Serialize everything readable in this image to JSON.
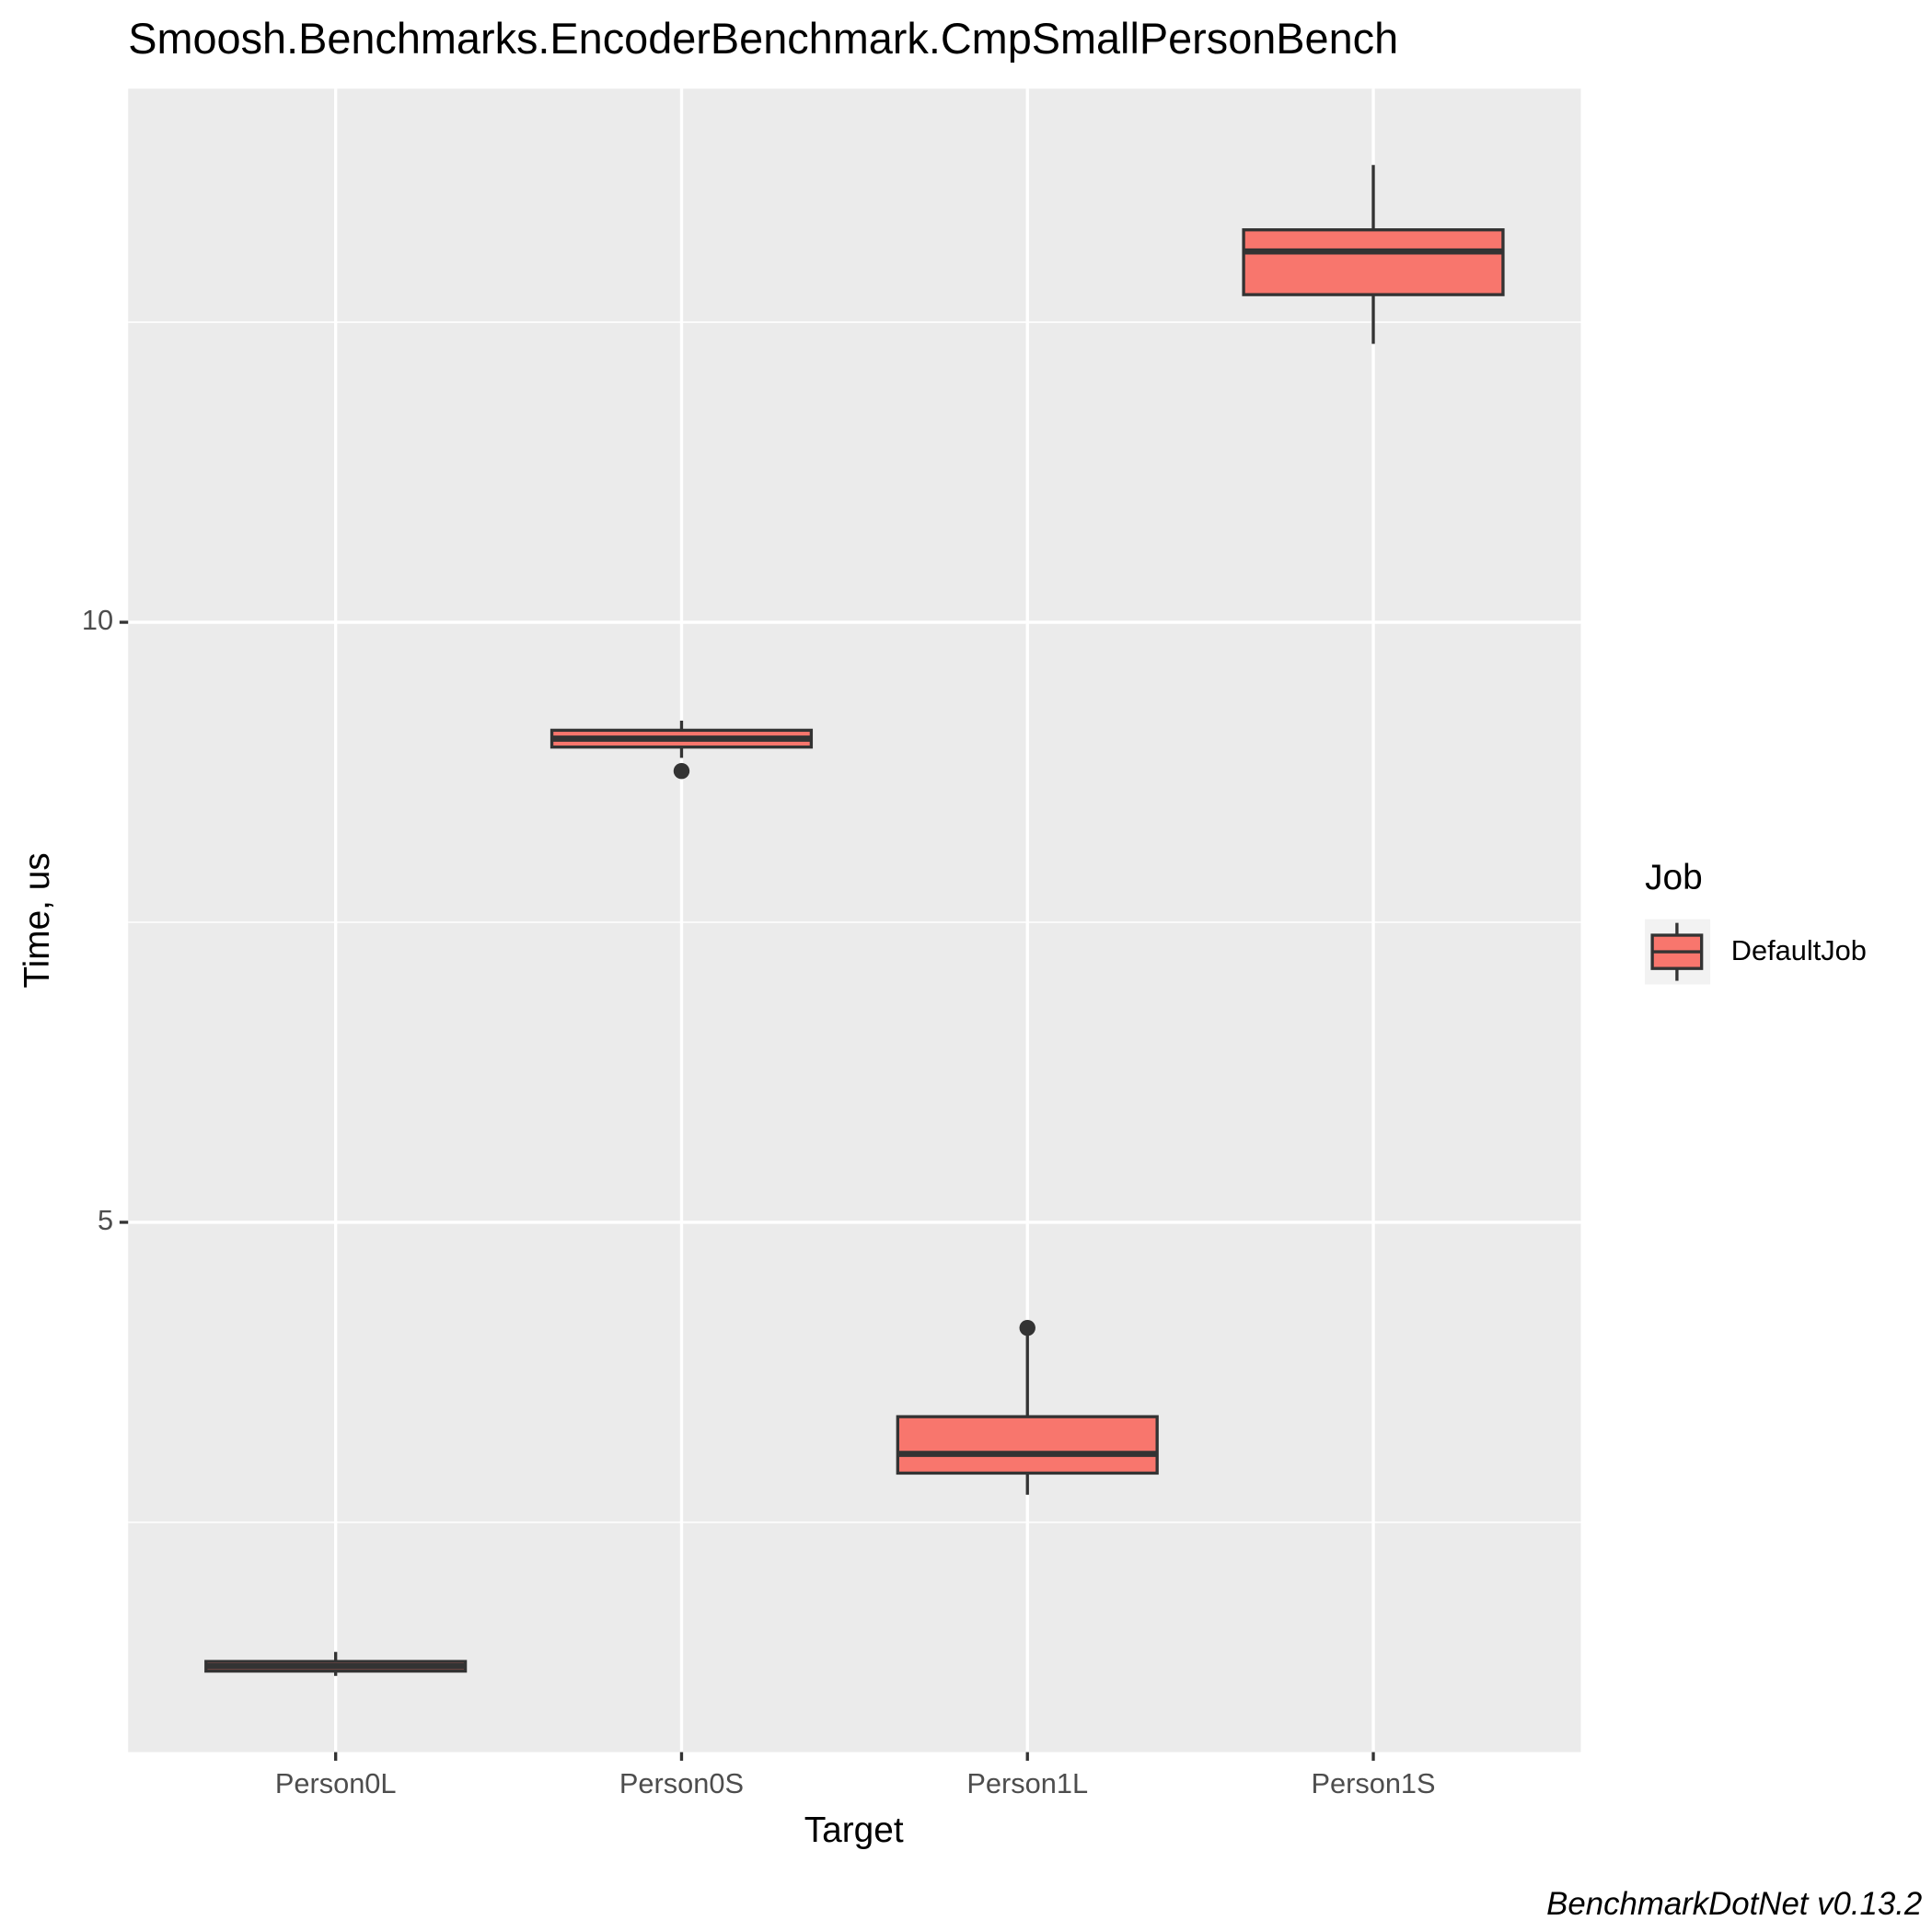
{
  "chart_data": {
    "type": "box",
    "title": "Smoosh.Benchmarks.EncoderBenchmark.CmpSmallPersonBench",
    "x_label": "Target",
    "y_label": "Time, us",
    "legend_title": "Job",
    "caption": "BenchmarkDotNet v0.13.2",
    "categories": [
      "Person0L",
      "Person0S",
      "Person1L",
      "Person1S"
    ],
    "series": [
      {
        "name": "DefaultJob",
        "color": "#F8766D",
        "whislo": [
          1.22,
          8.87,
          2.73,
          12.32
        ],
        "q1": [
          1.26,
          8.96,
          2.91,
          12.73
        ],
        "median": [
          1.3,
          9.03,
          3.07,
          13.09
        ],
        "q3": [
          1.34,
          9.1,
          3.38,
          13.27
        ],
        "whishi": [
          1.42,
          9.18,
          4.08,
          13.81
        ],
        "outliers": [
          [],
          [
            8.76
          ],
          [
            4.12
          ],
          []
        ]
      }
    ],
    "ylim": [
      0.585,
      14.446
    ],
    "yticks": [
      5,
      10
    ],
    "grid": true
  }
}
